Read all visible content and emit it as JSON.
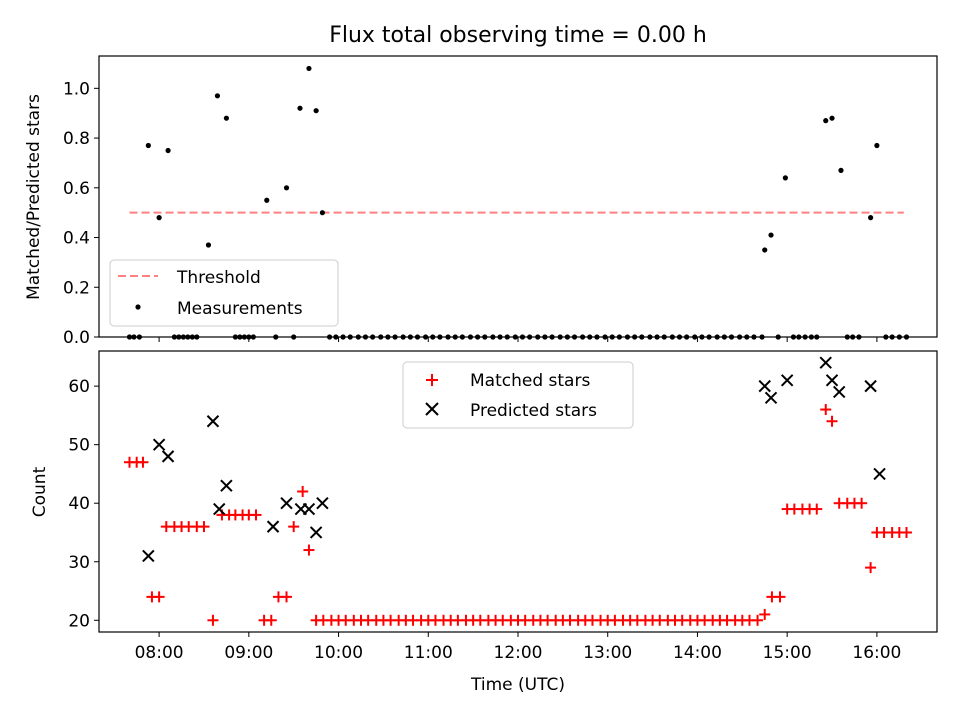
{
  "chart_data": [
    {
      "type": "scatter",
      "title": "Flux total observing time = 0.00 h",
      "xlabel": "",
      "ylabel": "Matched/Predicted stars",
      "x_unit": "hours UTC",
      "xlim": [
        7.33,
        16.67
      ],
      "ylim": [
        0.0,
        1.13
      ],
      "yticks": [
        "0.0",
        "0.2",
        "0.4",
        "0.6",
        "0.8",
        "1.0"
      ],
      "xticks_labels_shown": false,
      "legend": {
        "placement": "lower-left",
        "entries": [
          "Threshold",
          "Measurements"
        ]
      },
      "threshold": {
        "name": "Threshold",
        "value": 0.5,
        "x_range": [
          7.67,
          16.3
        ],
        "color": "#ff8080",
        "style": "dashed"
      },
      "series": [
        {
          "name": "Measurements",
          "marker": "dot",
          "color": "#000000",
          "x": [
            7.67,
            7.72,
            7.78,
            7.88,
            8.0,
            8.1,
            8.17,
            8.22,
            8.27,
            8.32,
            8.37,
            8.42,
            8.55,
            8.65,
            8.75,
            8.85,
            8.9,
            8.95,
            9.0,
            9.05,
            9.2,
            9.3,
            9.42,
            9.5,
            9.57,
            9.67,
            9.75,
            9.82,
            9.9,
            9.97,
            10.05,
            10.13,
            10.22,
            10.3,
            10.38,
            10.47,
            10.55,
            10.63,
            10.72,
            10.8,
            10.88,
            10.97,
            11.05,
            11.13,
            11.22,
            11.3,
            11.38,
            11.47,
            11.55,
            11.63,
            11.72,
            11.8,
            11.88,
            11.97,
            12.05,
            12.13,
            12.22,
            12.3,
            12.38,
            12.47,
            12.55,
            12.63,
            12.72,
            12.8,
            12.88,
            12.97,
            13.05,
            13.13,
            13.22,
            13.3,
            13.38,
            13.47,
            13.55,
            13.63,
            13.72,
            13.8,
            13.88,
            13.97,
            14.05,
            14.13,
            14.22,
            14.3,
            14.38,
            14.47,
            14.55,
            14.63,
            14.72,
            14.75,
            14.82,
            14.9,
            14.98,
            15.07,
            15.13,
            15.2,
            15.27,
            15.33,
            15.43,
            15.5,
            15.6,
            15.67,
            15.73,
            15.8,
            15.93,
            16.0,
            16.1,
            16.17,
            16.25,
            16.33
          ],
          "y": [
            0,
            0,
            0,
            0.77,
            0.48,
            0.75,
            0,
            0,
            0,
            0,
            0,
            0,
            0.37,
            0.97,
            0.88,
            0,
            0,
            0,
            0,
            0,
            0.55,
            0,
            0.6,
            0,
            0.92,
            1.08,
            0.91,
            0.5,
            0,
            0,
            0,
            0,
            0,
            0,
            0,
            0,
            0,
            0,
            0,
            0,
            0,
            0,
            0,
            0,
            0,
            0,
            0,
            0,
            0,
            0,
            0,
            0,
            0,
            0,
            0,
            0,
            0,
            0,
            0,
            0,
            0,
            0,
            0,
            0,
            0,
            0,
            0,
            0,
            0,
            0,
            0,
            0,
            0,
            0,
            0,
            0,
            0,
            0,
            0,
            0,
            0,
            0,
            0,
            0,
            0,
            0,
            0,
            0.35,
            0.41,
            0,
            0.64,
            0,
            0,
            0,
            0,
            0,
            0.87,
            0.88,
            0.67,
            0,
            0,
            0,
            0.48,
            0.77,
            0,
            0,
            0,
            0
          ]
        }
      ]
    },
    {
      "type": "scatter",
      "title": "",
      "xlabel": "Time (UTC)",
      "ylabel": "Count",
      "x_unit": "hours UTC",
      "xlim": [
        7.33,
        16.67
      ],
      "ylim": [
        18,
        66
      ],
      "yticks": [
        "20",
        "30",
        "40",
        "50",
        "60"
      ],
      "xticks": [
        "08:00",
        "09:00",
        "10:00",
        "11:00",
        "12:00",
        "13:00",
        "14:00",
        "15:00",
        "16:00"
      ],
      "legend": {
        "placement": "upper-center",
        "entries": [
          "Matched stars",
          "Predicted stars"
        ]
      },
      "series": [
        {
          "name": "Matched stars",
          "marker": "plus",
          "color": "#ff0000",
          "x": [
            7.67,
            7.75,
            7.82,
            7.92,
            8.0,
            8.08,
            8.17,
            8.25,
            8.33,
            8.42,
            8.5,
            8.6,
            8.7,
            8.78,
            8.85,
            8.93,
            9.0,
            9.08,
            9.17,
            9.25,
            9.33,
            9.42,
            9.5,
            9.6,
            9.67,
            9.75,
            9.83,
            9.92,
            10.0,
            10.08,
            10.17,
            10.25,
            10.33,
            10.42,
            10.5,
            10.58,
            10.67,
            10.75,
            10.83,
            10.92,
            11.0,
            11.08,
            11.17,
            11.25,
            11.33,
            11.42,
            11.5,
            11.58,
            11.67,
            11.75,
            11.83,
            11.92,
            12.0,
            12.08,
            12.17,
            12.25,
            12.33,
            12.42,
            12.5,
            12.58,
            12.67,
            12.75,
            12.83,
            12.92,
            13.0,
            13.08,
            13.17,
            13.25,
            13.33,
            13.42,
            13.5,
            13.58,
            13.67,
            13.75,
            13.83,
            13.92,
            14.0,
            14.08,
            14.17,
            14.25,
            14.33,
            14.42,
            14.5,
            14.58,
            14.67,
            14.75,
            14.83,
            14.92,
            15.0,
            15.08,
            15.17,
            15.25,
            15.33,
            15.43,
            15.5,
            15.58,
            15.67,
            15.75,
            15.83,
            15.93,
            16.0,
            16.08,
            16.17,
            16.25,
            16.33
          ],
          "y": [
            47,
            47,
            47,
            24,
            24,
            36,
            36,
            36,
            36,
            36,
            36,
            20,
            38,
            38,
            38,
            38,
            38,
            38,
            20,
            20,
            24,
            24,
            36,
            42,
            32,
            20,
            20,
            20,
            20,
            20,
            20,
            20,
            20,
            20,
            20,
            20,
            20,
            20,
            20,
            20,
            20,
            20,
            20,
            20,
            20,
            20,
            20,
            20,
            20,
            20,
            20,
            20,
            20,
            20,
            20,
            20,
            20,
            20,
            20,
            20,
            20,
            20,
            20,
            20,
            20,
            20,
            20,
            20,
            20,
            20,
            20,
            20,
            20,
            20,
            20,
            20,
            20,
            20,
            20,
            20,
            20,
            20,
            20,
            20,
            20,
            21,
            24,
            24,
            39,
            39,
            39,
            39,
            39,
            56,
            54,
            40,
            40,
            40,
            40,
            29,
            35,
            35,
            35,
            35,
            35
          ]
        },
        {
          "name": "Predicted stars",
          "marker": "x",
          "color": "#000000",
          "x": [
            7.88,
            8.0,
            8.1,
            8.6,
            8.67,
            8.75,
            9.27,
            9.42,
            9.58,
            9.67,
            9.75,
            9.82,
            14.75,
            14.82,
            15.0,
            15.43,
            15.5,
            15.58,
            15.93,
            16.03
          ],
          "y": [
            31,
            50,
            48,
            54,
            39,
            43,
            36,
            40,
            39,
            39,
            35,
            40,
            60,
            58,
            61,
            64,
            61,
            59,
            60,
            45
          ]
        }
      ]
    }
  ]
}
